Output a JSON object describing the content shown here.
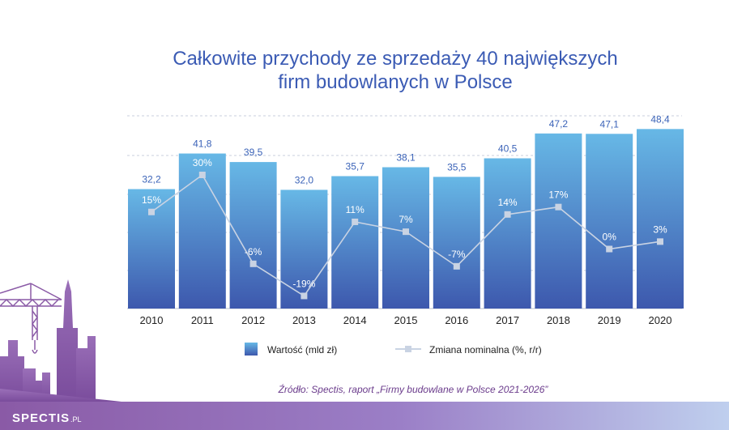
{
  "chart_data": {
    "type": "bar",
    "title": [
      "Całkowite przychody ze sprzedaży 40 największych",
      "firm budowlanych w Polsce"
    ],
    "categories": [
      "2010",
      "2011",
      "2012",
      "2013",
      "2014",
      "2015",
      "2016",
      "2017",
      "2018",
      "2019",
      "2020"
    ],
    "series": [
      {
        "name": "Wartość (mld zł)",
        "type": "bar",
        "values": [
          32.2,
          41.8,
          39.5,
          32.0,
          35.7,
          38.1,
          35.5,
          40.5,
          47.2,
          47.1,
          48.4
        ],
        "labels": [
          "32,2",
          "41,8",
          "39,5",
          "32,0",
          "35,7",
          "38,1",
          "35,5",
          "40,5",
          "47,2",
          "47,1",
          "48,4"
        ]
      },
      {
        "name": "Zmiana nominalna (%, r/r)",
        "type": "line",
        "values": [
          15,
          30,
          -6,
          -19,
          11,
          7,
          -7,
          14,
          17,
          0,
          3
        ],
        "labels": [
          "15%",
          "30%",
          "-6%",
          "-19%",
          "11%",
          "7%",
          "-7%",
          "14%",
          "17%",
          "0%",
          "3%"
        ]
      }
    ],
    "grid": true,
    "legend": "bottom",
    "colors": {
      "bar_top": "#67b8e6",
      "bar_bottom": "#3d58ad",
      "line": "#c9d3e3",
      "title": "#3b5bb4",
      "value_label": "#3b63b8"
    }
  },
  "source": "Źródło: Spectis, raport „Firmy budowlane w Polsce 2021-2026”",
  "logo": {
    "brand": "SPECTIS",
    "suffix": ".PL"
  }
}
